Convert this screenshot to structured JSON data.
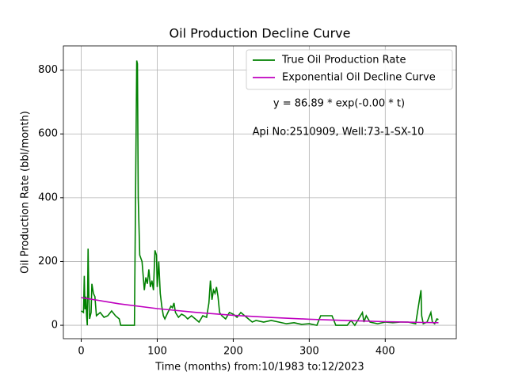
{
  "chart_data": {
    "type": "line",
    "title": "Oil Production Decline Curve",
    "xlabel": "Time (months) from:10/1983 to:12/2023",
    "ylabel": "Oil Production Rate (bbl/month)",
    "annotations": [
      "y = 86.89 * exp(-0.00 * t)",
      "Api No:2510909, Well:73-1-SX-10"
    ],
    "xlim": [
      -23.5,
      493.5
    ],
    "ylim": [
      -42,
      876
    ],
    "xticks": [
      0,
      100,
      200,
      300,
      400
    ],
    "yticks": [
      0,
      200,
      400,
      600,
      800
    ],
    "grid": true,
    "legend": "upper right",
    "series": [
      {
        "name": "True Oil Production Rate",
        "color": "#008000",
        "x": [
          0,
          3,
          4,
          5,
          6,
          7,
          8,
          9,
          10,
          11,
          13,
          14,
          16,
          18,
          20,
          25,
          30,
          35,
          40,
          45,
          50,
          52,
          60,
          70,
          73,
          74,
          75,
          77,
          80,
          83,
          85,
          87,
          89,
          91,
          93,
          95,
          97,
          99,
          100,
          102,
          104,
          106,
          108,
          110,
          114,
          118,
          120,
          122,
          124,
          128,
          132,
          136,
          140,
          145,
          150,
          155,
          160,
          165,
          168,
          170,
          172,
          174,
          176,
          178,
          180,
          182,
          185,
          190,
          195,
          200,
          205,
          210,
          215,
          220,
          225,
          230,
          240,
          250,
          260,
          270,
          280,
          290,
          300,
          310,
          315,
          330,
          335,
          350,
          355,
          360,
          365,
          370,
          372,
          375,
          380,
          390,
          400,
          410,
          420,
          430,
          440,
          447,
          448,
          450,
          455,
          460,
          462,
          465,
          468,
          470
        ],
        "values": [
          45,
          40,
          155,
          50,
          90,
          30,
          0,
          240,
          100,
          20,
          40,
          130,
          100,
          90,
          30,
          40,
          25,
          30,
          45,
          30,
          20,
          0,
          0,
          0,
          830,
          820,
          400,
          220,
          200,
          110,
          150,
          130,
          175,
          120,
          140,
          110,
          235,
          220,
          120,
          200,
          100,
          60,
          30,
          20,
          40,
          60,
          55,
          70,
          40,
          25,
          35,
          30,
          20,
          30,
          20,
          10,
          30,
          25,
          70,
          140,
          80,
          110,
          100,
          120,
          90,
          40,
          30,
          20,
          40,
          35,
          25,
          40,
          30,
          20,
          10,
          15,
          10,
          15,
          10,
          5,
          8,
          3,
          5,
          0,
          30,
          30,
          0,
          0,
          15,
          0,
          20,
          40,
          10,
          30,
          10,
          5,
          10,
          8,
          10,
          10,
          5,
          110,
          30,
          5,
          10,
          40,
          10,
          5,
          20,
          18
        ]
      },
      {
        "name": "Exponential Oil Decline Curve",
        "color": "#bf00bf",
        "x": [
          0,
          50,
          100,
          150,
          200,
          250,
          300,
          350,
          400,
          450,
          470
        ],
        "values": [
          86.89,
          67.4,
          52.4,
          40.6,
          31.5,
          24.5,
          19.0,
          14.7,
          11.4,
          8.9,
          8.0
        ]
      }
    ]
  }
}
